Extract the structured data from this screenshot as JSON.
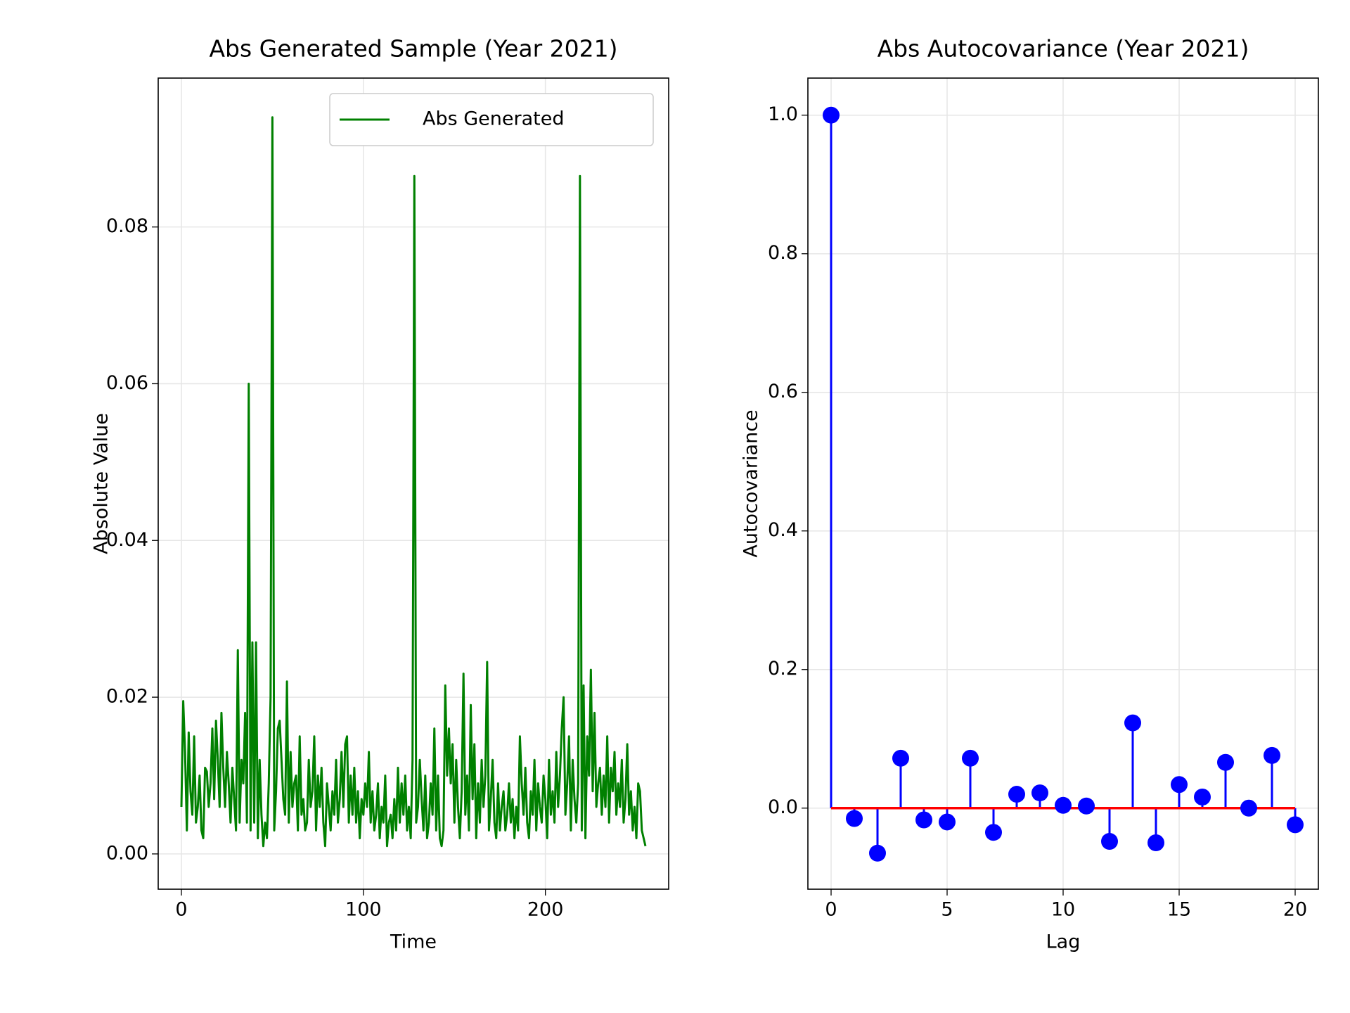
{
  "chart_data": [
    {
      "type": "line",
      "title": "Abs Generated Sample (Year 2021)",
      "xlabel": "Time",
      "ylabel": "Absolute Value",
      "x": [
        0,
        1,
        2,
        3,
        4,
        5,
        6,
        7,
        8,
        9,
        10,
        11,
        12,
        13,
        14,
        15,
        16,
        17,
        18,
        19,
        20,
        21,
        22,
        23,
        24,
        25,
        26,
        27,
        28,
        29,
        30,
        31,
        32,
        33,
        34,
        35,
        36,
        37,
        38,
        39,
        40,
        41,
        42,
        43,
        44,
        45,
        46,
        47,
        48,
        49,
        50,
        51,
        52,
        53,
        54,
        55,
        56,
        57,
        58,
        59,
        60,
        61,
        62,
        63,
        64,
        65,
        66,
        67,
        68,
        69,
        70,
        71,
        72,
        73,
        74,
        75,
        76,
        77,
        78,
        79,
        80,
        81,
        82,
        83,
        84,
        85,
        86,
        87,
        88,
        89,
        90,
        91,
        92,
        93,
        94,
        95,
        96,
        97,
        98,
        99,
        100,
        101,
        102,
        103,
        104,
        105,
        106,
        107,
        108,
        109,
        110,
        111,
        112,
        113,
        114,
        115,
        116,
        117,
        118,
        119,
        120,
        121,
        122,
        123,
        124,
        125,
        126,
        127,
        128,
        129,
        130,
        131,
        132,
        133,
        134,
        135,
        136,
        137,
        138,
        139,
        140,
        141,
        142,
        143,
        144,
        145,
        146,
        147,
        148,
        149,
        150,
        151,
        152,
        153,
        154,
        155,
        156,
        157,
        158,
        159,
        160,
        161,
        162,
        163,
        164,
        165,
        166,
        167,
        168,
        169,
        170,
        171,
        172,
        173,
        174,
        175,
        176,
        177,
        178,
        179,
        180,
        181,
        182,
        183,
        184,
        185,
        186,
        187,
        188,
        189,
        190,
        191,
        192,
        193,
        194,
        195,
        196,
        197,
        198,
        199,
        200,
        201,
        202,
        203,
        204,
        205,
        206,
        207,
        208,
        209,
        210,
        211,
        212,
        213,
        214,
        215,
        216,
        217,
        218,
        219,
        220,
        221,
        222,
        223,
        224,
        225,
        226,
        227,
        228,
        229,
        230,
        231,
        232,
        233,
        234,
        235,
        236,
        237,
        238,
        239,
        240,
        241,
        242,
        243,
        244,
        245,
        246,
        247,
        248,
        249,
        250,
        251,
        252,
        253,
        254,
        255
      ],
      "series": [
        {
          "name": "Abs Generated",
          "color": "#008000",
          "values": [
            0.006,
            0.0195,
            0.013,
            0.003,
            0.0155,
            0.008,
            0.005,
            0.015,
            0.004,
            0.006,
            0.01,
            0.003,
            0.002,
            0.011,
            0.0105,
            0.006,
            0.009,
            0.016,
            0.007,
            0.017,
            0.012,
            0.006,
            0.018,
            0.011,
            0.006,
            0.013,
            0.009,
            0.004,
            0.011,
            0.007,
            0.003,
            0.026,
            0.004,
            0.012,
            0.009,
            0.018,
            0.004,
            0.06,
            0.003,
            0.027,
            0.004,
            0.027,
            0.002,
            0.012,
            0.005,
            0.001,
            0.004,
            0.002,
            0.009,
            0.02,
            0.094,
            0.003,
            0.008,
            0.016,
            0.017,
            0.012,
            0.007,
            0.005,
            0.022,
            0.004,
            0.013,
            0.006,
            0.009,
            0.01,
            0.003,
            0.015,
            0.005,
            0.007,
            0.003,
            0.004,
            0.012,
            0.006,
            0.008,
            0.015,
            0.003,
            0.01,
            0.006,
            0.011,
            0.004,
            0.001,
            0.009,
            0.006,
            0.003,
            0.008,
            0.005,
            0.012,
            0.004,
            0.007,
            0.013,
            0.006,
            0.014,
            0.015,
            0.004,
            0.01,
            0.005,
            0.011,
            0.004,
            0.008,
            0.002,
            0.007,
            0.005,
            0.009,
            0.006,
            0.013,
            0.004,
            0.008,
            0.003,
            0.005,
            0.009,
            0.002,
            0.006,
            0.004,
            0.01,
            0.001,
            0.004,
            0.005,
            0.002,
            0.007,
            0.003,
            0.011,
            0.004,
            0.009,
            0.005,
            0.01,
            0.003,
            0.006,
            0.002,
            0.012,
            0.0865,
            0.004,
            0.006,
            0.012,
            0.007,
            0.003,
            0.01,
            0.002,
            0.004,
            0.009,
            0.005,
            0.016,
            0.003,
            0.01,
            0.002,
            0.001,
            0.003,
            0.0215,
            0.01,
            0.016,
            0.009,
            0.014,
            0.004,
            0.012,
            0.006,
            0.002,
            0.008,
            0.023,
            0.005,
            0.01,
            0.003,
            0.019,
            0.007,
            0.014,
            0.002,
            0.009,
            0.004,
            0.012,
            0.006,
            0.01,
            0.0245,
            0.003,
            0.007,
            0.012,
            0.004,
            0.002,
            0.009,
            0.003,
            0.006,
            0.008,
            0.003,
            0.005,
            0.009,
            0.004,
            0.007,
            0.002,
            0.006,
            0.003,
            0.015,
            0.009,
            0.005,
            0.011,
            0.004,
            0.002,
            0.008,
            0.005,
            0.012,
            0.003,
            0.009,
            0.006,
            0.004,
            0.01,
            0.007,
            0.002,
            0.012,
            0.005,
            0.008,
            0.004,
            0.013,
            0.006,
            0.01,
            0.016,
            0.02,
            0.005,
            0.009,
            0.015,
            0.003,
            0.012,
            0.007,
            0.004,
            0.009,
            0.0865,
            0.003,
            0.0215,
            0.002,
            0.015,
            0.01,
            0.0235,
            0.008,
            0.018,
            0.006,
            0.009,
            0.011,
            0.005,
            0.01,
            0.006,
            0.015,
            0.004,
            0.011,
            0.008,
            0.013,
            0.005,
            0.009,
            0.006,
            0.012,
            0.004,
            0.007,
            0.014,
            0.005,
            0.008,
            0.003,
            0.006,
            0.002,
            0.009,
            0.008,
            0.003,
            0.002,
            0.001
          ]
        }
      ],
      "xlim": [
        -12.75,
        267.75
      ],
      "xticks": [
        0,
        100,
        200
      ],
      "ylim": [
        -0.0045,
        0.099
      ],
      "yticks": [
        {
          "value": 0,
          "label": "0.00"
        },
        {
          "value": 0.02,
          "label": "0.02"
        },
        {
          "value": 0.04,
          "label": "0.04"
        },
        {
          "value": 0.06,
          "label": "0.06"
        },
        {
          "value": 0.08,
          "label": "0.08"
        }
      ],
      "grid": true,
      "legend": "upper right"
    },
    {
      "type": "stem",
      "title": "Abs Autocovariance (Year 2021)",
      "xlabel": "Lag",
      "ylabel": "Autocovariance",
      "x": [
        0,
        1,
        2,
        3,
        4,
        5,
        6,
        7,
        8,
        9,
        10,
        11,
        12,
        13,
        14,
        15,
        16,
        17,
        18,
        19,
        20
      ],
      "values": [
        1.0,
        -0.015,
        -0.065,
        0.072,
        -0.017,
        -0.02,
        0.072,
        -0.035,
        0.02,
        0.022,
        0.004,
        0.003,
        -0.048,
        0.123,
        -0.05,
        0.034,
        0.016,
        0.066,
        0.0,
        0.076,
        -0.024
      ],
      "color": "#0000ff",
      "baseline_color": "#ff0000",
      "xlim": [
        -1,
        21
      ],
      "xticks": [
        0,
        5,
        10,
        15,
        20
      ],
      "ylim": [
        -0.117,
        1.0535
      ],
      "yticks": [
        {
          "value": 0,
          "label": "0.0"
        },
        {
          "value": 0.2,
          "label": "0.2"
        },
        {
          "value": 0.4,
          "label": "0.4"
        },
        {
          "value": 0.6,
          "label": "0.6"
        },
        {
          "value": 0.8,
          "label": "0.8"
        },
        {
          "value": 1.0,
          "label": "1.0"
        }
      ],
      "grid": true
    }
  ]
}
